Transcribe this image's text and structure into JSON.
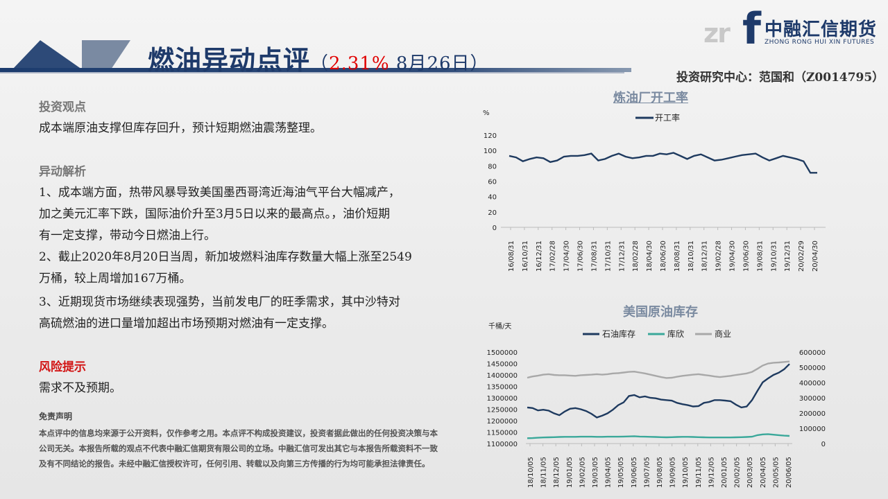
{
  "header": {
    "title_main": "燃油异动点评",
    "title_open": "（",
    "title_pct": "2.31%",
    "title_date": " 8月26日）",
    "research_center": "投资研究中心：范国和（Z0014795）"
  },
  "logo": {
    "zr": "zr",
    "f": "f",
    "cn": "中融汇信期货",
    "en": "ZHONG RONG HUI XIN FUTURES"
  },
  "content": {
    "view_heading": "投资观点",
    "view_text": "成本端原油支撑但库存回升，预计短期燃油震荡整理。",
    "analysis_heading": "异动解析",
    "analysis_lines": [
      "1、成本端方面，热带风暴导致美国墨西哥湾近海油气平台大幅减产，",
      "加之美元汇率下跌，国际油价升至3月5日以来的最高点。，油价短期",
      "有一定支撑，带动今日燃油上行。",
      "2、截止2020年8月20日当周，新加坡燃料油库存数量大幅上涨至2549",
      "万桶，较上周增加167万桶。",
      "3、近期现货市场继续表现强势，当前发电厂的旺季需求，其中沙特对",
      "高硫燃油的进口量增加超出市场预期对燃油有一定支撑。"
    ],
    "risk_heading": "风险提示",
    "risk_text": "需求不及预期。",
    "disclaimer_heading": "免责声明",
    "disclaimer_text": "本点评中的信息均来源于公开资料，仅作参考之用。本点评不构成投资建议，投资者据此做出的任何投资决策与本公司无关。本报告所载的观点不代表中融汇信期货有限公司的立场。中融汇信可发出其它与本报告所载资料不一致及有不同结论的报告。未经中融汇信授权许可，任何引用、转载以及向第三方传播的行为均可能承担法律责任。"
  },
  "chart_data": [
    {
      "type": "line",
      "title": "炼油厂开工率",
      "ylabel": "%",
      "ylim": [
        0,
        120
      ],
      "yticks": [
        0,
        20,
        40,
        60,
        80,
        100,
        120
      ],
      "x_labels": [
        "16/08/31",
        "16/10/31",
        "16/12/31",
        "17/02/28",
        "17/04/30",
        "17/06/30",
        "17/08/31",
        "17/10/31",
        "17/12/31",
        "18/02/28",
        "18/04/30",
        "18/06/30",
        "18/08/31",
        "18/10/31",
        "18/12/31",
        "19/02/28",
        "19/04/30",
        "19/06/30",
        "19/08/31",
        "19/10/31",
        "19/12/31",
        "20/02/29",
        "20/04/30"
      ],
      "series": [
        {
          "name": "开工率",
          "color": "#1e3a5f",
          "values": [
            93,
            91,
            86,
            89,
            91,
            90,
            85,
            87,
            92,
            93,
            93,
            94,
            96,
            87,
            89,
            93,
            96,
            92,
            90,
            91,
            93,
            93,
            96,
            95,
            97,
            93,
            89,
            93,
            95,
            91,
            87,
            88,
            90,
            92,
            94,
            95,
            96,
            91,
            87,
            90,
            93,
            91,
            89,
            86,
            71,
            71
          ]
        }
      ]
    },
    {
      "type": "line",
      "title": "美国原油库存",
      "ylabel": "千桶/天",
      "ylim_left": [
        1100000,
        1500000
      ],
      "ylim_right": [
        0,
        600000
      ],
      "yticks_left": [
        1100000,
        1150000,
        1200000,
        1250000,
        1300000,
        1350000,
        1400000,
        1450000,
        1500000
      ],
      "yticks_right": [
        0,
        100000,
        200000,
        300000,
        400000,
        500000,
        600000
      ],
      "x_labels": [
        "18/10/05",
        "18/11/05",
        "18/12/05",
        "19/01/05",
        "19/02/05",
        "19/03/05",
        "19/04/05",
        "19/05/05",
        "19/06/05",
        "19/07/05",
        "19/08/05",
        "19/09/05",
        "19/10/05",
        "19/11/05",
        "19/12/05",
        "20/01/05",
        "20/02/05",
        "20/03/05",
        "20/04/05",
        "20/05/05",
        "20/06/05"
      ],
      "series": [
        {
          "name": "石油库存",
          "axis": "left",
          "color": "#1e3a5f",
          "values": [
            1258000,
            1255000,
            1245000,
            1248000,
            1244000,
            1232000,
            1224000,
            1240000,
            1252000,
            1255000,
            1250000,
            1242000,
            1230000,
            1214000,
            1222000,
            1232000,
            1248000,
            1268000,
            1280000,
            1308000,
            1312000,
            1302000,
            1306000,
            1300000,
            1298000,
            1292000,
            1290000,
            1288000,
            1278000,
            1272000,
            1268000,
            1262000,
            1264000,
            1278000,
            1282000,
            1290000,
            1290000,
            1288000,
            1285000,
            1270000,
            1258000,
            1262000,
            1290000,
            1330000,
            1368000,
            1385000,
            1400000,
            1410000,
            1425000,
            1448000
          ]
        },
        {
          "name": "库欣",
          "axis": "right",
          "color": "#3aa89a",
          "values": [
            35000,
            36000,
            38000,
            40000,
            41000,
            42000,
            43000,
            44000,
            44000,
            44000,
            45000,
            45000,
            45000,
            44000,
            44000,
            45000,
            45000,
            45000,
            46000,
            47000,
            48000,
            46000,
            45000,
            44000,
            43000,
            42000,
            41000,
            42000,
            43000,
            44000,
            44000,
            43000,
            42000,
            41000,
            40000,
            40000,
            40000,
            40000,
            40000,
            41000,
            42000,
            43000,
            45000,
            55000,
            60000,
            62000,
            58000,
            55000,
            52000,
            50000
          ]
        },
        {
          "name": "商业",
          "axis": "right",
          "color": "#a8a8a8",
          "values": [
            432000,
            440000,
            445000,
            452000,
            455000,
            450000,
            448000,
            448000,
            446000,
            444000,
            448000,
            450000,
            452000,
            455000,
            452000,
            455000,
            460000,
            462000,
            466000,
            470000,
            472000,
            466000,
            460000,
            452000,
            444000,
            436000,
            430000,
            432000,
            438000,
            444000,
            448000,
            452000,
            455000,
            450000,
            446000,
            440000,
            436000,
            440000,
            444000,
            450000,
            455000,
            460000,
            470000,
            490000,
            512000,
            525000,
            530000,
            532000,
            535000,
            538000
          ]
        }
      ]
    }
  ]
}
